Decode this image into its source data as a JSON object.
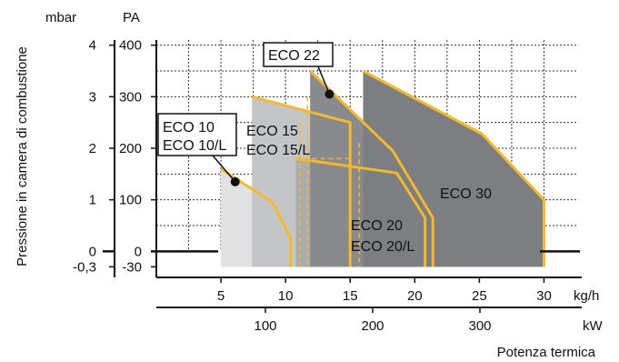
{
  "chart_data": {
    "type": "area",
    "ylabel": "Pressione in camera di combustione",
    "y_units": [
      "mbar",
      "PA"
    ],
    "yticks_mbar": [
      "4",
      "3",
      "2",
      "1",
      "0",
      "-0,3"
    ],
    "yticks_pa": [
      "400",
      "300",
      "200",
      "100",
      "0",
      "-30"
    ],
    "ylim_pa": [
      -30,
      400
    ],
    "x_top_unit": "kg/h",
    "x_top_ticks": [
      "5",
      "10",
      "15",
      "20",
      "25",
      "30"
    ],
    "x_top_values": [
      5,
      10,
      15,
      20,
      25,
      30
    ],
    "x_bottom_unit": "kW",
    "x_bottom_ticks": [
      "100",
      "200",
      "300"
    ],
    "x_bottom_values": [
      100,
      200,
      300
    ],
    "xlabel": "Potenza termica",
    "xlim_kgh": [
      0,
      32.5
    ],
    "grid": true,
    "series": [
      {
        "name": "ECO 10 / ECO 10/L",
        "label_lines": [
          "ECO 10",
          "ECO 10/L"
        ],
        "color": "#e2e2e2",
        "points": [
          [
            5.0,
            -30
          ],
          [
            5.0,
            160
          ],
          [
            9.0,
            95
          ],
          [
            10.4,
            25
          ],
          [
            10.4,
            -30
          ]
        ]
      },
      {
        "name": "ECO 15 / ECO 15/L",
        "label_lines": [
          "ECO 15",
          "ECO 15/L"
        ],
        "color": "#c4c5c7",
        "points": [
          [
            7.4,
            -30
          ],
          [
            7.4,
            300
          ],
          [
            15.0,
            250
          ],
          [
            15.0,
            -30
          ]
        ]
      },
      {
        "name": "ECO 20 / ECO 20/L",
        "label_lines": [
          "ECO 20",
          "ECO 20/L"
        ],
        "color": "#aaabad",
        "points": [
          [
            10.8,
            -30
          ],
          [
            10.8,
            180
          ],
          [
            18.6,
            152
          ],
          [
            20.8,
            65
          ],
          [
            20.8,
            -30
          ]
        ]
      },
      {
        "name": "ECO 22",
        "label_lines": [
          "ECO 22"
        ],
        "color": "#898a8d",
        "points": [
          [
            11.9,
            -30
          ],
          [
            11.9,
            350
          ],
          [
            18.3,
            195
          ],
          [
            21.4,
            65
          ],
          [
            21.4,
            -30
          ]
        ]
      },
      {
        "name": "ECO 30",
        "label_lines": [
          "ECO 30"
        ],
        "color": "#7d7e82",
        "points": [
          [
            16.0,
            -30
          ],
          [
            16.0,
            350
          ],
          [
            25.2,
            228
          ],
          [
            30.0,
            100
          ],
          [
            30.0,
            -30
          ]
        ]
      }
    ],
    "dashed_lines_kgh": [
      11.1,
      11.7,
      15.7
    ],
    "outline_color": "#f4b92f",
    "callout_points": [
      [
        6.1,
        135
      ],
      [
        13.4,
        305
      ]
    ]
  }
}
